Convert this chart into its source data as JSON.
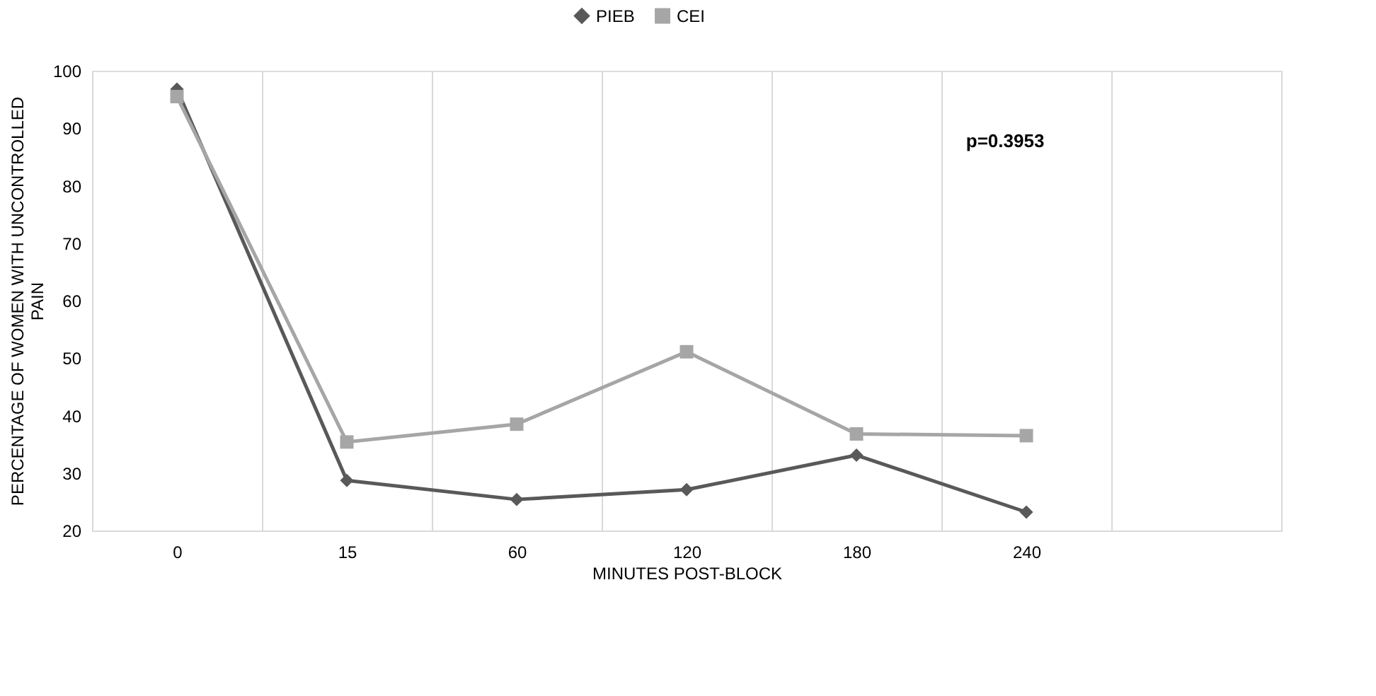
{
  "chart_data": {
    "type": "line",
    "categories": [
      "0",
      "15",
      "60",
      "120",
      "180",
      "240",
      null
    ],
    "series": [
      {
        "name": "PIEB",
        "color": "#595959",
        "marker": "diamond",
        "values": [
          96.8,
          28.7,
          25.4,
          27.1,
          33.1,
          23.2,
          null
        ]
      },
      {
        "name": "CEI",
        "color": "#a6a6a6",
        "marker": "square",
        "values": [
          95.5,
          35.4,
          38.5,
          51.1,
          36.8,
          36.5,
          null
        ]
      }
    ],
    "xlabel": "MINUTES POST-BLOCK",
    "ylabel": "PERCENTAGE OF WOMEN WITH UNCONTROLLED PAIN",
    "ylim": [
      20,
      100
    ],
    "yticks": [
      20,
      30,
      40,
      50,
      60,
      70,
      80,
      90,
      100
    ],
    "grid": "x",
    "legend": "top",
    "line_style": "solid",
    "annotations": [
      "p=0.3953"
    ]
  }
}
